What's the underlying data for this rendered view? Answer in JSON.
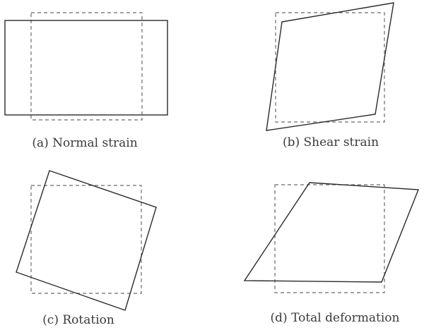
{
  "panels": [
    {
      "id": "a",
      "caption": "(a) Normal strain"
    },
    {
      "id": "b",
      "caption": "(b) Shear strain"
    },
    {
      "id": "c",
      "caption": "(c) Rotation"
    },
    {
      "id": "d",
      "caption": "(d) Total deformation"
    }
  ],
  "colors": {
    "line": "#2a2a2a",
    "dashed": "#6a6a6a",
    "text": "#3a3a3a"
  }
}
